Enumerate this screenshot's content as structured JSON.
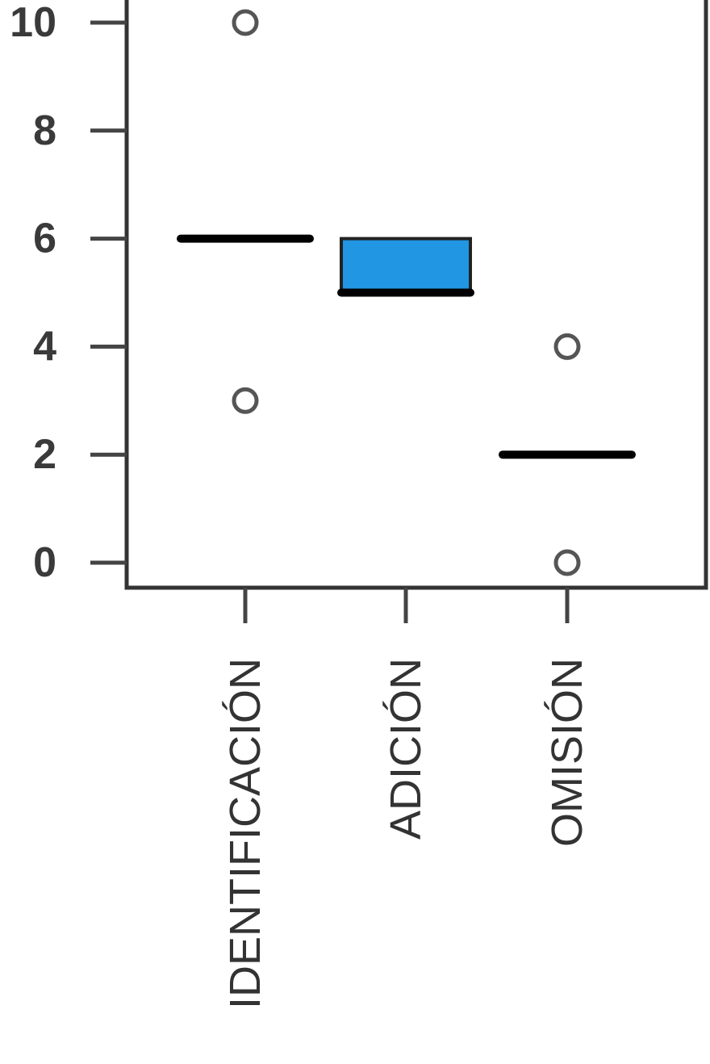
{
  "chart_data": {
    "type": "box",
    "title": "",
    "xlabel": "",
    "ylabel": "",
    "ylim": [
      0,
      10
    ],
    "yticks": [
      "0",
      "2",
      "4",
      "6",
      "8",
      "10"
    ],
    "categories": [
      "IDENTIFICACIÓN",
      "ADICIÓN",
      "OMISIÓN"
    ],
    "series": [
      {
        "category": "IDENTIFICACIÓN",
        "q1": 6,
        "median": 6,
        "q3": 6,
        "whisker_low": 6,
        "whisker_high": 6,
        "outliers": [
          10,
          3
        ]
      },
      {
        "category": "ADICIÓN",
        "q1": 5,
        "median": 5,
        "q3": 6,
        "whisker_low": 5,
        "whisker_high": 6,
        "outliers": []
      },
      {
        "category": "OMISIÓN",
        "q1": 2,
        "median": 2,
        "q3": 2,
        "whisker_low": 2,
        "whisker_high": 2,
        "outliers": [
          4,
          0
        ]
      }
    ],
    "box_fill": "#2196e3",
    "grid": false,
    "legend": "none"
  }
}
